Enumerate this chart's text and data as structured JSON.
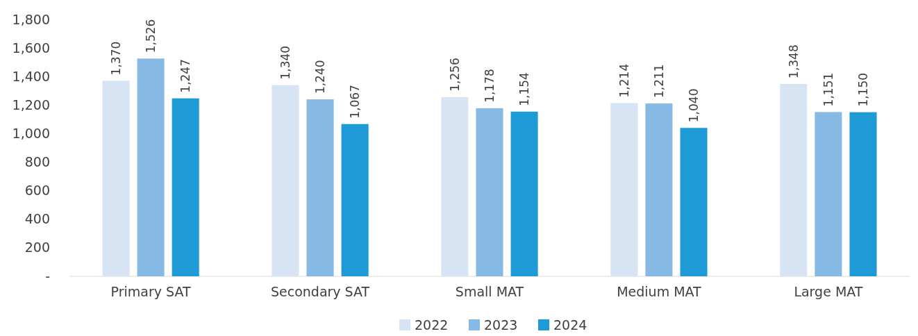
{
  "chart_data": {
    "type": "bar",
    "categories": [
      "Primary SAT",
      "Secondary SAT",
      "Small MAT",
      "Medium MAT",
      "Large MAT"
    ],
    "series": [
      {
        "name": "2022",
        "color": "#d6e4f4",
        "values": [
          1370,
          1340,
          1256,
          1214,
          1348
        ],
        "value_labels": [
          "1,370",
          "1,340",
          "1,256",
          "1,214",
          "1,348"
        ]
      },
      {
        "name": "2023",
        "color": "#86b9e3",
        "values": [
          1526,
          1240,
          1178,
          1211,
          1151
        ],
        "value_labels": [
          "1,526",
          "1,240",
          "1,178",
          "1,211",
          "1,151"
        ]
      },
      {
        "name": "2024",
        "color": "#1e9bd7",
        "values": [
          1247,
          1067,
          1154,
          1040,
          1150
        ],
        "value_labels": [
          "1,247",
          "1,067",
          "1,154",
          "1,040",
          "1,150"
        ]
      }
    ],
    "ylim": [
      0,
      1800
    ],
    "yticks": [
      {
        "value": 0,
        "label": "-"
      },
      {
        "value": 200,
        "label": "200"
      },
      {
        "value": 400,
        "label": "400"
      },
      {
        "value": 600,
        "label": "600"
      },
      {
        "value": 800,
        "label": "800"
      },
      {
        "value": 1000,
        "label": "1,000"
      },
      {
        "value": 1200,
        "label": "1,200"
      },
      {
        "value": 1400,
        "label": "1,400"
      },
      {
        "value": 1600,
        "label": "1,600"
      },
      {
        "value": 1800,
        "label": "1,800"
      }
    ],
    "grid": false,
    "legend": "bottom"
  }
}
